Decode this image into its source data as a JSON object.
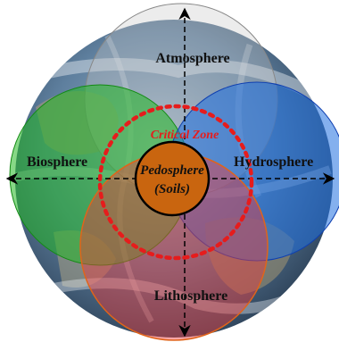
{
  "spheres": {
    "atmosphere": {
      "label": "Atmosphere",
      "color": "#c9c9c9"
    },
    "biosphere": {
      "label": "Biosphere",
      "color": "#22b822"
    },
    "hydrosphere": {
      "label": "Hydrosphere",
      "color": "#1f6fe0"
    },
    "lithosphere": {
      "label": "Lithosphere",
      "color": "#f03a3a"
    }
  },
  "critical_zone": {
    "label": "Critical Zone",
    "color": "#e61c1c"
  },
  "core": {
    "line1": "Pedosphere",
    "line2": "(Soils)",
    "color": "#c9650f"
  },
  "earth": {
    "ocean": "#4a6f93",
    "land": "#8f8a78",
    "cloud": "#e9eef2"
  }
}
